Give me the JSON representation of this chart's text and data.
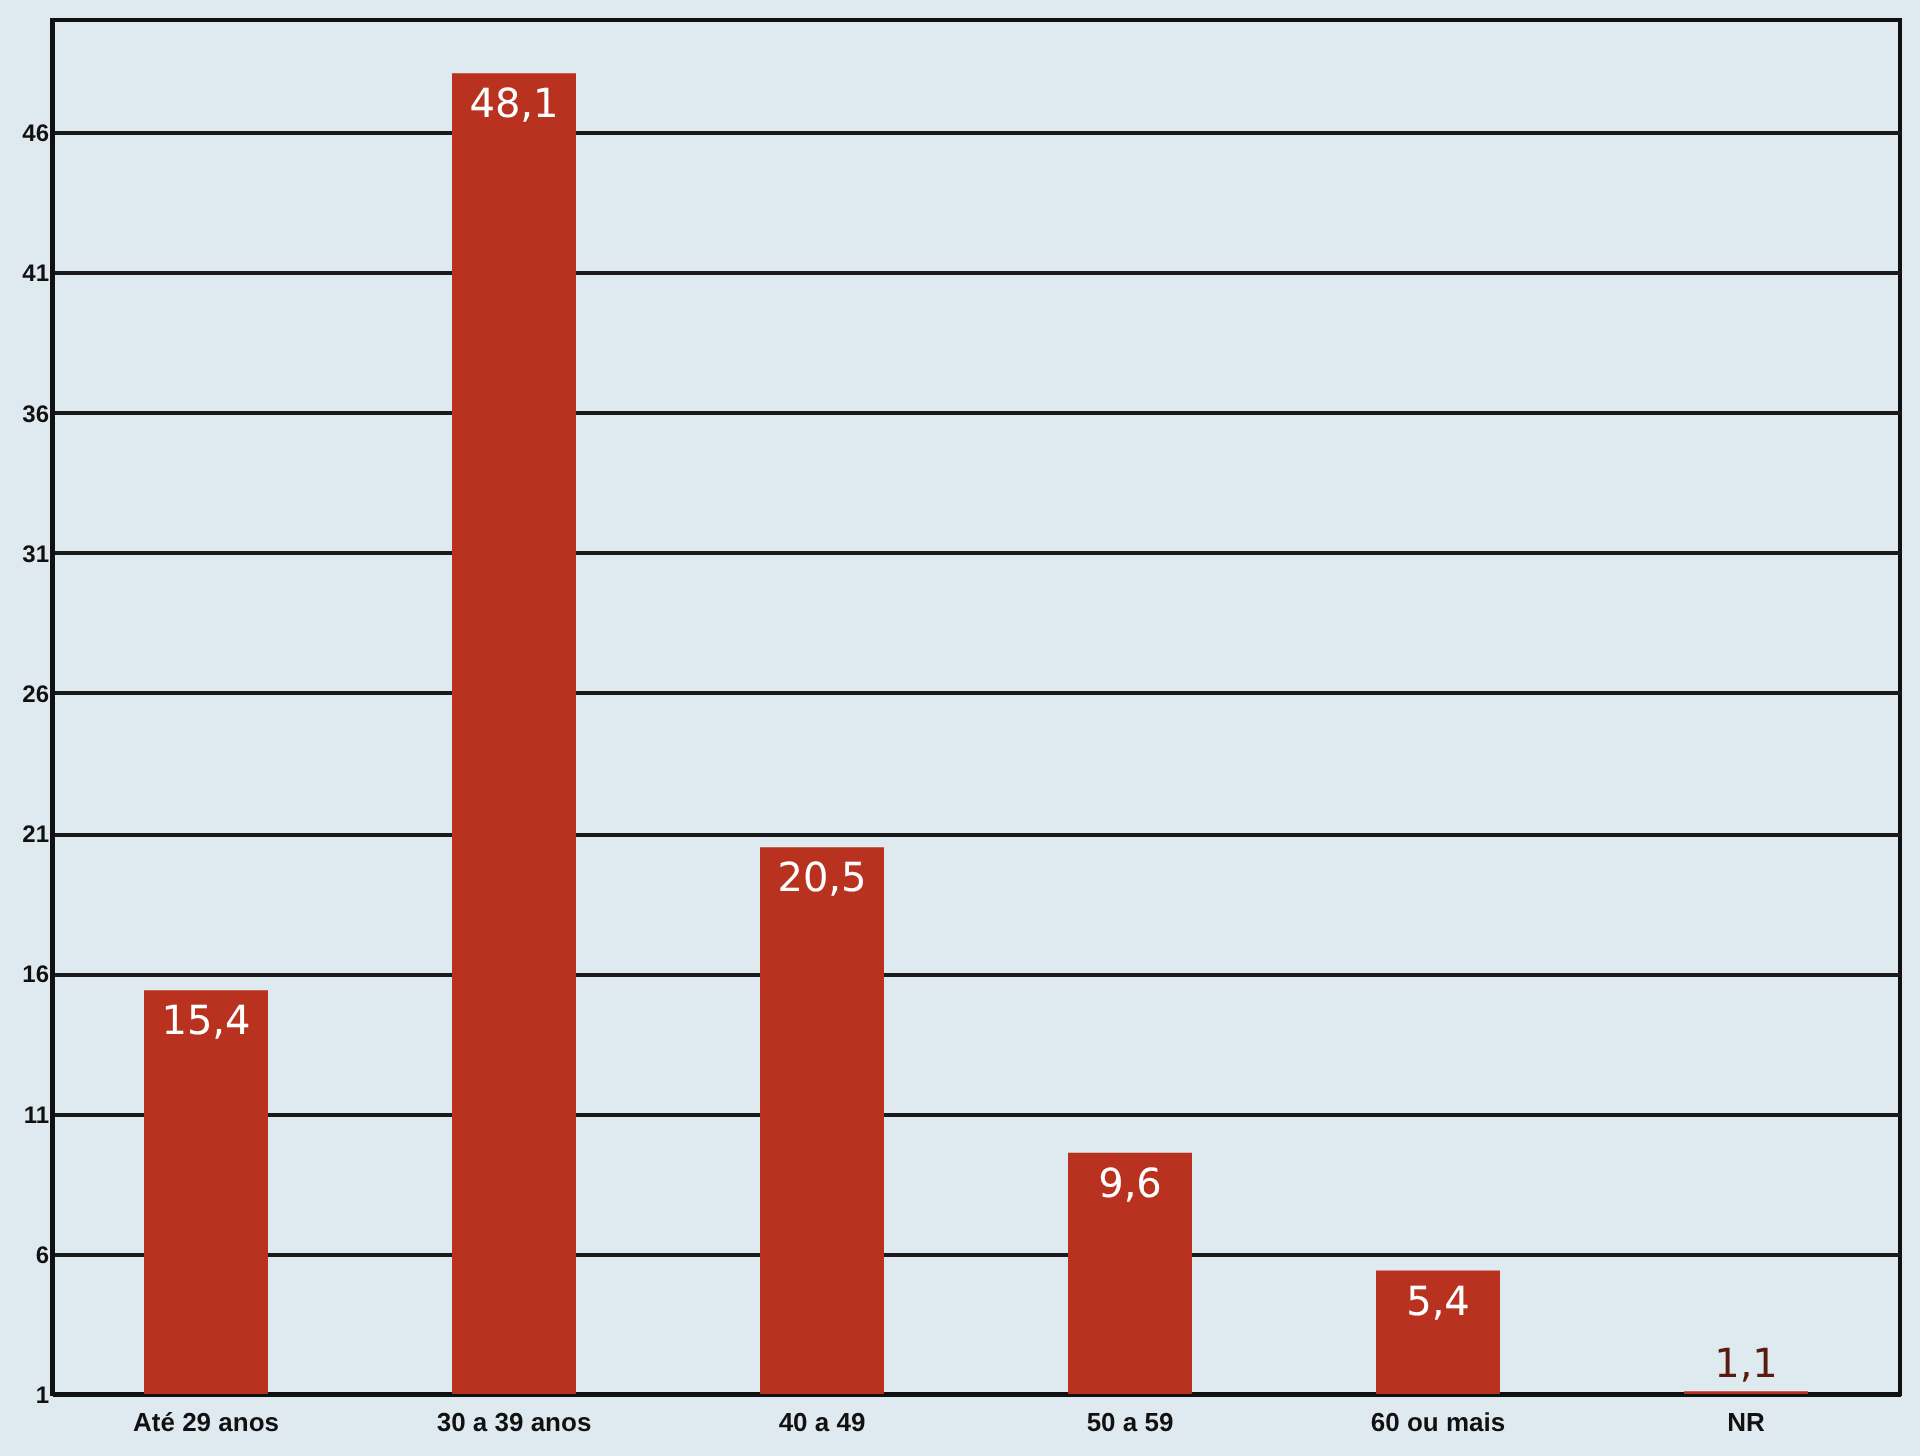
{
  "chart_data": {
    "type": "bar",
    "categories": [
      "Até 29 anos",
      "30 a 39 anos",
      "40 a 49",
      "50 a 59",
      "60 ou mais",
      "NR"
    ],
    "values": [
      15.4,
      48.1,
      20.5,
      9.6,
      5.4,
      1.1
    ],
    "value_labels": [
      "15,4",
      "48,1",
      "20,5",
      "9,6",
      "5,4",
      "1,1"
    ],
    "color": "#b8321f",
    "ylim": [
      1,
      50
    ],
    "yticks": [
      1,
      6,
      11,
      16,
      21,
      26,
      31,
      36,
      41,
      46
    ],
    "grid": "y"
  }
}
